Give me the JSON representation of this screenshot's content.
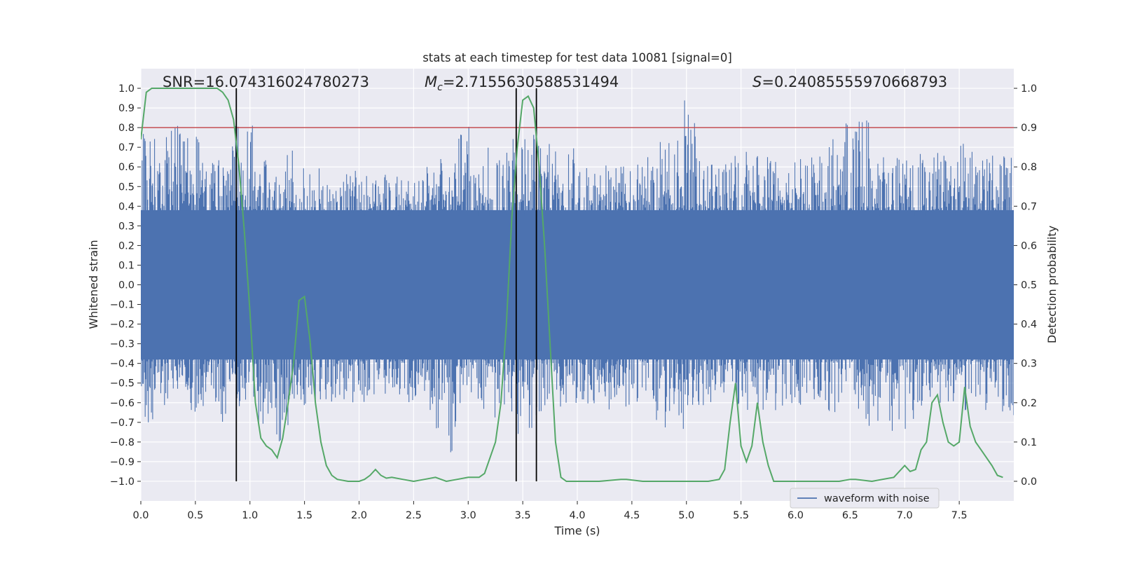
{
  "chart_data": {
    "type": "line",
    "title": "stats at each timestep for test data 10081 [signal=0]",
    "xlabel": "Time (s)",
    "ylabel": "Whitened strain",
    "ylabel_right": "Detection probability",
    "xlim": [
      0.0,
      8.0
    ],
    "ylim": [
      -1.1,
      1.1
    ],
    "ylim_right": [
      -0.05,
      1.05
    ],
    "x_ticks": [
      "0.0",
      "0.5",
      "1.0",
      "1.5",
      "2.0",
      "2.5",
      "3.0",
      "3.5",
      "4.0",
      "4.5",
      "5.0",
      "5.5",
      "6.0",
      "6.5",
      "7.0",
      "7.5"
    ],
    "y_ticks": [
      "1.0",
      "0.9",
      "0.8",
      "0.7",
      "0.6",
      "0.5",
      "0.4",
      "0.3",
      "0.2",
      "0.1",
      "0.0",
      "−0.1",
      "−0.2",
      "−0.3",
      "−0.4",
      "−0.5",
      "−0.6",
      "−0.7",
      "−0.8",
      "−0.9",
      "−1.0"
    ],
    "y_ticks_right": [
      "1.0",
      "0.9",
      "0.8",
      "0.7",
      "0.6",
      "0.5",
      "0.4",
      "0.3",
      "0.2",
      "0.1",
      "0.0"
    ],
    "grid": true,
    "legend_position": "bottom-right",
    "stats": {
      "snr_label": "SNR=16.074316024780273",
      "mc_prefix": "M",
      "mc_sub": "c",
      "mc_value": "=2.7155630588531494",
      "s_prefix": "S",
      "s_value": "=0.24085555970668793"
    },
    "threshold_right": 0.9,
    "vertical_markers": [
      0.875,
      3.44,
      3.625
    ],
    "series": [
      {
        "name": "waveform with noise",
        "color": "#4c72b0",
        "envelope_x": [
          0.0,
          0.1,
          0.2,
          0.3,
          0.45,
          0.6,
          0.75,
          0.88,
          0.95,
          1.0,
          1.2,
          1.4,
          1.5,
          1.7,
          2.0,
          2.3,
          2.6,
          2.8,
          3.0,
          3.3,
          3.5,
          3.7,
          4.0,
          4.3,
          4.6,
          4.9,
          5.0,
          5.2,
          5.4,
          5.6,
          5.9,
          6.2,
          6.5,
          6.6,
          6.9,
          7.2,
          7.5,
          7.7,
          8.0
        ],
        "envelope_upper": [
          0.78,
          0.78,
          0.78,
          0.8,
          0.87,
          0.65,
          0.63,
          0.85,
          0.7,
          0.86,
          0.6,
          0.72,
          0.6,
          0.6,
          0.58,
          0.6,
          0.6,
          0.68,
          0.82,
          0.65,
          0.84,
          0.72,
          0.7,
          0.6,
          0.62,
          0.84,
          0.99,
          0.6,
          0.7,
          0.68,
          0.64,
          0.7,
          0.85,
          0.88,
          0.66,
          0.7,
          0.73,
          0.68,
          0.73
        ],
        "envelope_lower": [
          -0.78,
          -0.7,
          -0.7,
          -0.6,
          -0.66,
          -0.65,
          -0.7,
          -0.65,
          -0.6,
          -0.6,
          -0.88,
          -0.66,
          -0.64,
          -0.6,
          -0.6,
          -0.6,
          -0.6,
          -0.95,
          -0.6,
          -0.7,
          -0.82,
          -0.65,
          -0.6,
          -0.66,
          -0.6,
          -0.82,
          -0.7,
          -0.6,
          -0.6,
          -0.7,
          -0.62,
          -0.66,
          -0.64,
          -0.7,
          -0.78,
          -0.7,
          -0.65,
          -0.7,
          -0.7
        ]
      },
      {
        "name": "detection probability",
        "color": "#55a868",
        "axis": "right",
        "x": [
          0.0,
          0.05,
          0.1,
          0.2,
          0.4,
          0.6,
          0.7,
          0.75,
          0.8,
          0.85,
          0.9,
          0.95,
          1.0,
          1.05,
          1.1,
          1.15,
          1.2,
          1.25,
          1.3,
          1.35,
          1.4,
          1.45,
          1.5,
          1.55,
          1.6,
          1.65,
          1.7,
          1.75,
          1.8,
          1.9,
          2.0,
          2.05,
          2.1,
          2.15,
          2.2,
          2.25,
          2.3,
          2.4,
          2.5,
          2.6,
          2.7,
          2.8,
          2.9,
          3.0,
          3.1,
          3.15,
          3.2,
          3.25,
          3.3,
          3.35,
          3.4,
          3.45,
          3.5,
          3.55,
          3.6,
          3.65,
          3.7,
          3.75,
          3.8,
          3.85,
          3.9,
          4.0,
          4.2,
          4.4,
          4.45,
          4.6,
          4.8,
          5.0,
          5.2,
          5.3,
          5.35,
          5.4,
          5.45,
          5.5,
          5.55,
          5.6,
          5.65,
          5.7,
          5.75,
          5.8,
          5.9,
          6.0,
          6.2,
          6.4,
          6.5,
          6.55,
          6.7,
          6.9,
          7.0,
          7.05,
          7.1,
          7.15,
          7.2,
          7.25,
          7.3,
          7.35,
          7.4,
          7.45,
          7.5,
          7.55,
          7.6,
          7.65,
          7.7,
          7.8,
          7.85,
          7.9
        ],
        "y": [
          0.87,
          0.99,
          1.0,
          1.0,
          1.0,
          1.0,
          1.0,
          0.99,
          0.97,
          0.92,
          0.8,
          0.63,
          0.43,
          0.2,
          0.11,
          0.09,
          0.08,
          0.06,
          0.11,
          0.2,
          0.3,
          0.46,
          0.47,
          0.36,
          0.2,
          0.1,
          0.04,
          0.015,
          0.005,
          0.0,
          0.0,
          0.005,
          0.015,
          0.03,
          0.015,
          0.008,
          0.01,
          0.005,
          0.0,
          0.005,
          0.01,
          0.0,
          0.005,
          0.01,
          0.01,
          0.02,
          0.06,
          0.1,
          0.2,
          0.4,
          0.67,
          0.85,
          0.97,
          0.98,
          0.95,
          0.8,
          0.6,
          0.35,
          0.1,
          0.01,
          0.0,
          0.0,
          0.0,
          0.005,
          0.005,
          0.0,
          0.0,
          0.0,
          0.0,
          0.005,
          0.03,
          0.15,
          0.25,
          0.09,
          0.05,
          0.09,
          0.2,
          0.1,
          0.04,
          0.0,
          0.0,
          0.0,
          0.0,
          0.0,
          0.005,
          0.005,
          0.0,
          0.01,
          0.04,
          0.025,
          0.03,
          0.08,
          0.1,
          0.2,
          0.22,
          0.15,
          0.1,
          0.09,
          0.1,
          0.24,
          0.14,
          0.1,
          0.08,
          0.04,
          0.015,
          0.01
        ]
      }
    ]
  }
}
